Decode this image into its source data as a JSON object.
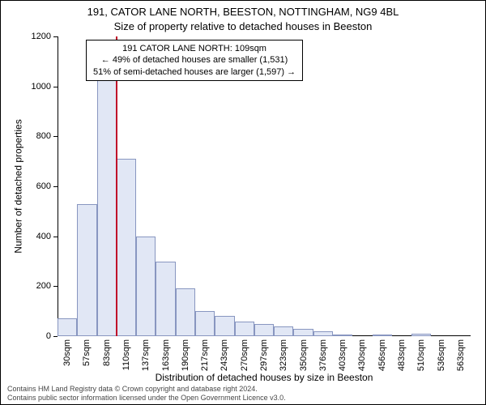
{
  "header": {
    "address": "191, CATOR LANE NORTH, BEESTON, NOTTINGHAM, NG9 4BL",
    "subtitle": "Size of property relative to detached houses in Beeston"
  },
  "info_box": {
    "line1": "191 CATOR LANE NORTH: 109sqm",
    "line2": "← 49% of detached houses are smaller (1,531)",
    "line3": "51% of semi-detached houses are larger (1,597) →"
  },
  "chart": {
    "type": "histogram",
    "ylabel": "Number of detached properties",
    "xlabel": "Distribution of detached houses by size in Beeston",
    "ylim": [
      0,
      1200
    ],
    "ytick_step": 200,
    "bar_fill": "#e1e7f5",
    "bar_stroke": "#8896c0",
    "marker_color": "#c0102a",
    "marker_x": 109,
    "background": "#ffffff",
    "x_start": 30,
    "x_step": 26.6,
    "categories": [
      "30sqm",
      "57sqm",
      "83sqm",
      "110sqm",
      "137sqm",
      "163sqm",
      "190sqm",
      "217sqm",
      "243sqm",
      "270sqm",
      "297sqm",
      "323sqm",
      "350sqm",
      "376sqm",
      "403sqm",
      "430sqm",
      "456sqm",
      "483sqm",
      "510sqm",
      "536sqm",
      "563sqm"
    ],
    "values": [
      70,
      530,
      1050,
      710,
      400,
      300,
      190,
      100,
      80,
      60,
      50,
      40,
      30,
      20,
      5,
      0,
      5,
      0,
      10,
      0,
      0
    ]
  },
  "footer": {
    "line1": "Contains HM Land Registry data © Crown copyright and database right 2024.",
    "line2": "Contains public sector information licensed under the Open Government Licence v3.0."
  }
}
